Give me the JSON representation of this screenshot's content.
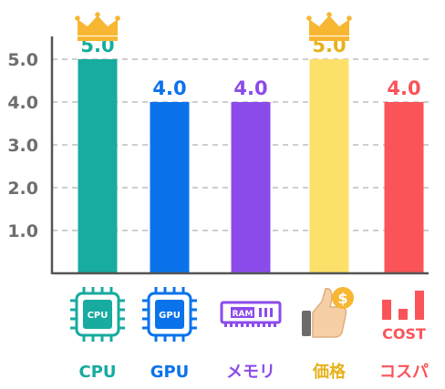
{
  "chart_data": {
    "type": "bar",
    "categories": [
      "CPU",
      "GPU",
      "メモリ",
      "価格",
      "コスパ"
    ],
    "values": [
      5.0,
      4.0,
      4.0,
      5.0,
      4.0
    ],
    "value_labels": [
      "5.0",
      "4.0",
      "4.0",
      "5.0",
      "4.0"
    ],
    "yticks": [
      "1.0",
      "2.0",
      "3.0",
      "4.0",
      "5.0"
    ],
    "ylim": [
      0,
      5.5
    ],
    "grid": true,
    "title": "",
    "xlabel": "",
    "ylabel": "",
    "colors": [
      "#18ab9f",
      "#0a73eb",
      "#8b4bea",
      "#fde069",
      "#fa5459"
    ],
    "label_colors": [
      "#18ab9f",
      "#0a73eb",
      "#8b4bea",
      "#e6b21c",
      "#fa5459"
    ],
    "crowns": [
      true,
      false,
      false,
      true,
      false
    ],
    "icons": [
      {
        "name": "cpu-chip-icon",
        "text": "CPU"
      },
      {
        "name": "gpu-chip-icon",
        "text": "GPU"
      },
      {
        "name": "ram-module-icon",
        "text": "RAM"
      },
      {
        "name": "thumbs-up-coin-icon",
        "text": "$"
      },
      {
        "name": "cost-bar-icon",
        "text": "COST"
      }
    ]
  }
}
